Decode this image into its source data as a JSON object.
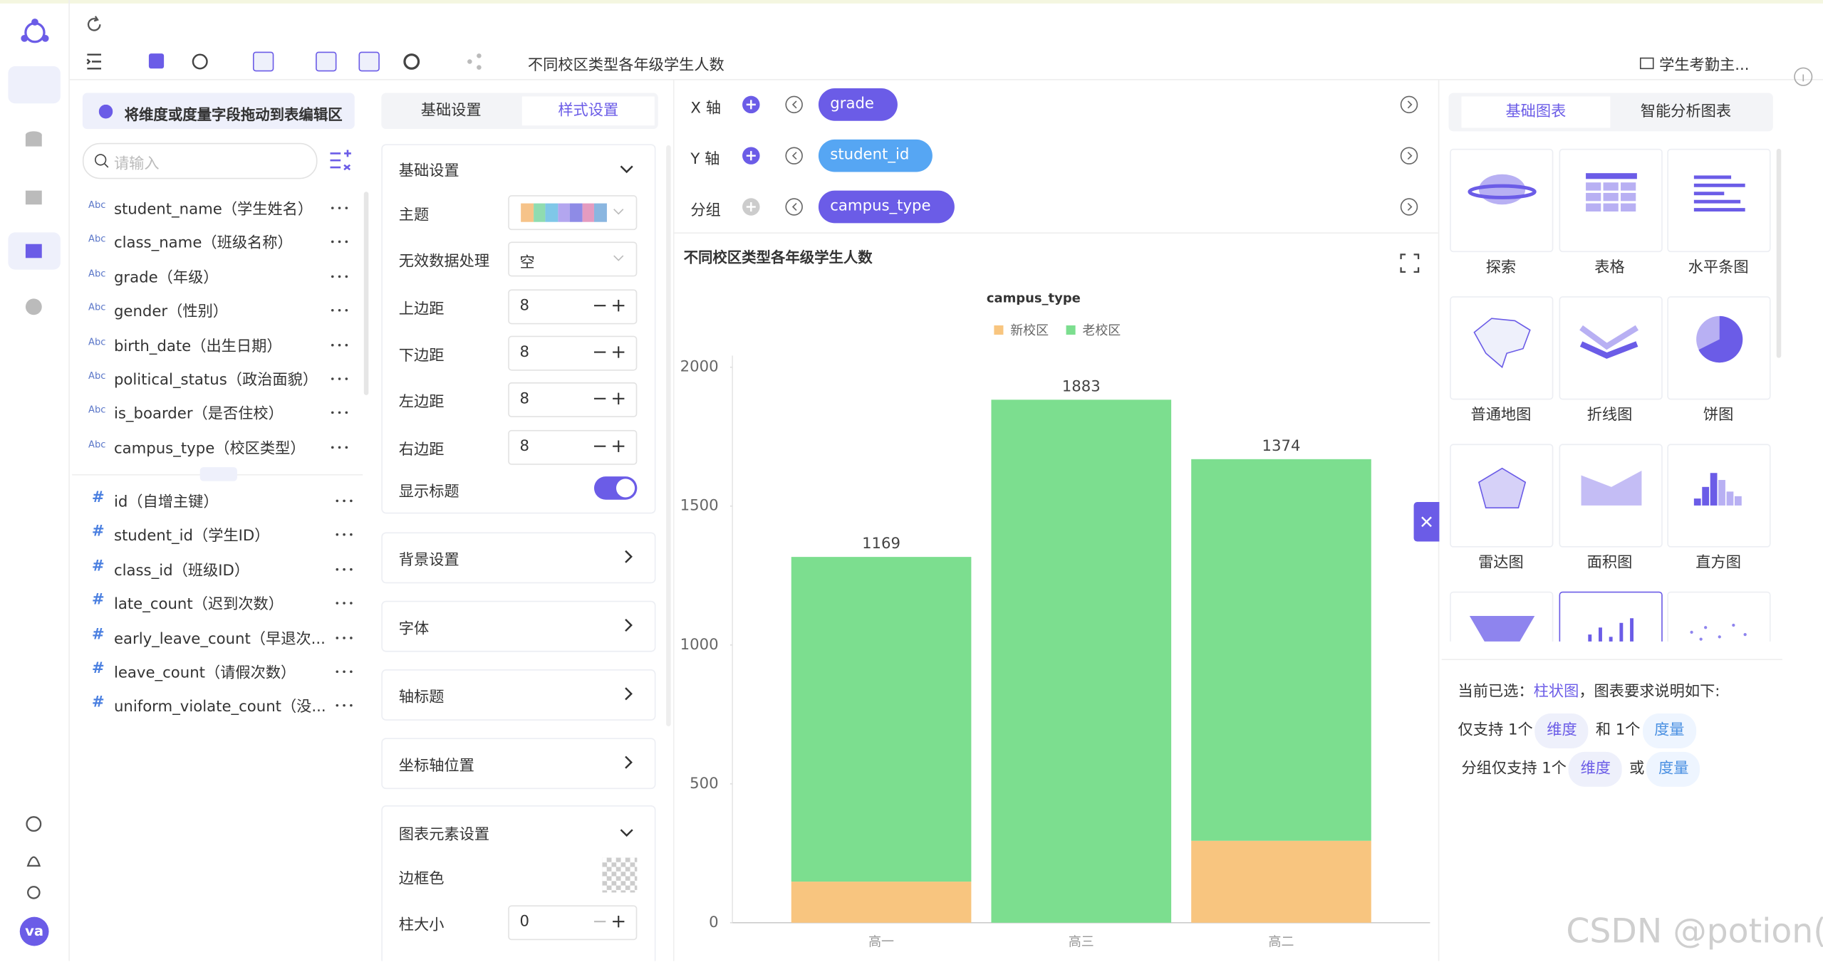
{
  "toolbar": {
    "title": "不同校区类型各年级学生人数",
    "dataset": "学生考勤主..."
  },
  "user": "va",
  "fields": {
    "hint": "将维度或度量字段拖动到表编辑区",
    "search_placeholder": "请输入",
    "dimensions": [
      {
        "type": "Abc",
        "label": "student_name（学生姓名）"
      },
      {
        "type": "Abc",
        "label": "class_name（班级名称）"
      },
      {
        "type": "Abc",
        "label": "grade（年级）"
      },
      {
        "type": "Abc",
        "label": "gender（性别）"
      },
      {
        "type": "Abc",
        "label": "birth_date（出生日期）"
      },
      {
        "type": "Abc",
        "label": "political_status（政治面貌）"
      },
      {
        "type": "Abc",
        "label": "is_boarder（是否住校）"
      },
      {
        "type": "Abc",
        "label": "campus_type（校区类型）"
      }
    ],
    "measures": [
      {
        "type": "#",
        "label": "id（自增主键）"
      },
      {
        "type": "#",
        "label": "student_id（学生ID）"
      },
      {
        "type": "#",
        "label": "class_id（班级ID）"
      },
      {
        "type": "#",
        "label": "late_count（迟到次数）"
      },
      {
        "type": "#",
        "label": "early_leave_count（早退次..."
      },
      {
        "type": "#",
        "label": "leave_count（请假次数）"
      },
      {
        "type": "#",
        "label": "uniform_violate_count（没..."
      }
    ]
  },
  "settings": {
    "tabs": [
      "基础设置",
      "样式设置"
    ],
    "basic": {
      "title": "基础设置",
      "rows": [
        {
          "label": "主题"
        },
        {
          "label": "无效数据处理",
          "value": "空"
        },
        {
          "label": "上边距",
          "value": 8
        },
        {
          "label": "下边距",
          "value": 8
        },
        {
          "label": "左边距",
          "value": 8
        },
        {
          "label": "右边距",
          "value": 8
        },
        {
          "label": "显示标题"
        }
      ]
    },
    "sections": [
      "背景设置",
      "字体",
      "轴标题",
      "坐标轴位置"
    ],
    "elements": {
      "title": "图表元素设置",
      "rows": [
        {
          "label": "边框色"
        },
        {
          "label": "柱大小",
          "value": 0
        }
      ]
    }
  },
  "shelves": [
    {
      "label": "X 轴",
      "field": "grade"
    },
    {
      "label": "Y 轴",
      "field": "student_id"
    },
    {
      "label": "分组",
      "field": "campus_type"
    }
  ],
  "chart_data": {
    "type": "bar",
    "stacked": true,
    "title": "不同校区类型各年级学生人数",
    "legend_title": "campus_type",
    "legend": "top",
    "categories": [
      "高一",
      "高三",
      "高二"
    ],
    "series": [
      {
        "name": "新校区",
        "color": "#f8c57f",
        "values": [
          148,
          null,
          295
        ]
      },
      {
        "name": "老校区",
        "color": "#7cde8f",
        "values": [
          1169,
          1883,
          1374
        ]
      }
    ],
    "ylim": [
      0,
      2000
    ],
    "yticks": [
      0,
      500,
      1000,
      1500,
      2000
    ],
    "grid": false
  },
  "chart_types": {
    "tabs": [
      "基础图表",
      "智能分析图表"
    ],
    "items": [
      "探索",
      "表格",
      "水平条图",
      "普通地图",
      "折线图",
      "饼图",
      "雷达图",
      "面积图",
      "直方图"
    ]
  },
  "requirements": {
    "prefix": "当前已选：",
    "current": "柱状图",
    "suffix": "，图表要求说明如下:",
    "line1": [
      "仅支持 1个",
      "维度",
      "和 1个",
      "度量"
    ],
    "line2": [
      "分组仅支持 1个",
      "维度",
      "或",
      "度量"
    ]
  },
  "watermark": "CSDN @potion()"
}
